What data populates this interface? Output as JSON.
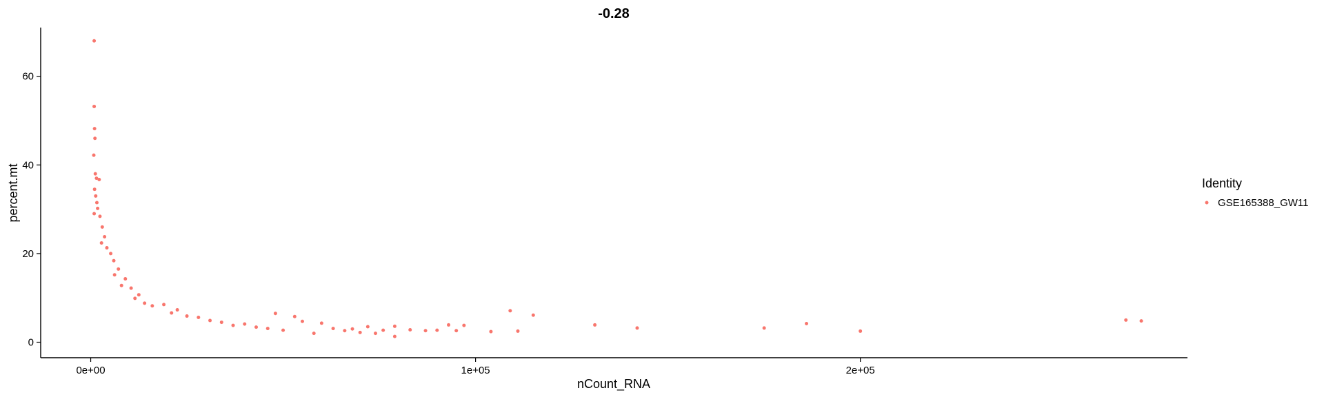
{
  "chart_data": {
    "type": "scatter",
    "title": "-0.28",
    "xlabel": "nCount_RNA",
    "ylabel": "percent.mt",
    "xlim": [
      -13000,
      285000
    ],
    "ylim": [
      -3.5,
      71
    ],
    "x_ticks": [
      {
        "value": 0,
        "label": "0e+00"
      },
      {
        "value": 100000,
        "label": "1e+05"
      },
      {
        "value": 200000,
        "label": "2e+05"
      }
    ],
    "y_ticks": [
      {
        "value": 0,
        "label": "0"
      },
      {
        "value": 20,
        "label": "20"
      },
      {
        "value": 40,
        "label": "40"
      },
      {
        "value": 60,
        "label": "60"
      }
    ],
    "grid": false,
    "legend": {
      "title": "Identity",
      "placement": "right",
      "entries": [
        {
          "label": "GSE165388_GW11",
          "color": "#F8766D"
        }
      ]
    },
    "series": [
      {
        "color": "#F8766D",
        "points": [
          [
            900,
            68
          ],
          [
            900,
            53.2
          ],
          [
            1000,
            48.2
          ],
          [
            1100,
            46
          ],
          [
            800,
            42.2
          ],
          [
            1200,
            38
          ],
          [
            1500,
            37
          ],
          [
            2200,
            36.7
          ],
          [
            1000,
            34.5
          ],
          [
            1300,
            33
          ],
          [
            1600,
            31.5
          ],
          [
            1800,
            30.2
          ],
          [
            900,
            29
          ],
          [
            2400,
            28.4
          ],
          [
            3000,
            26
          ],
          [
            3600,
            23.8
          ],
          [
            2800,
            22.4
          ],
          [
            4200,
            21.3
          ],
          [
            5200,
            20
          ],
          [
            6000,
            18.4
          ],
          [
            7200,
            16.5
          ],
          [
            6200,
            15.2
          ],
          [
            9000,
            14.3
          ],
          [
            8000,
            12.8
          ],
          [
            10500,
            12.2
          ],
          [
            12500,
            10.7
          ],
          [
            11500,
            9.9
          ],
          [
            14000,
            8.8
          ],
          [
            16000,
            8.2
          ],
          [
            19000,
            8.5
          ],
          [
            21000,
            6.6
          ],
          [
            22500,
            7.3
          ],
          [
            25000,
            5.9
          ],
          [
            28000,
            5.6
          ],
          [
            31000,
            4.9
          ],
          [
            34000,
            4.5
          ],
          [
            37000,
            3.8
          ],
          [
            40000,
            4.1
          ],
          [
            43000,
            3.4
          ],
          [
            46000,
            3.1
          ],
          [
            48000,
            6.5
          ],
          [
            50000,
            2.7
          ],
          [
            53000,
            5.8
          ],
          [
            55000,
            4.7
          ],
          [
            58000,
            2.0
          ],
          [
            60000,
            4.3
          ],
          [
            63000,
            3.1
          ],
          [
            66000,
            2.6
          ],
          [
            68000,
            3.0
          ],
          [
            70000,
            2.2
          ],
          [
            72000,
            3.5
          ],
          [
            74000,
            2.0
          ],
          [
            76000,
            2.7
          ],
          [
            79000,
            1.3
          ],
          [
            79000,
            3.6
          ],
          [
            83000,
            2.8
          ],
          [
            87000,
            2.6
          ],
          [
            90000,
            2.7
          ],
          [
            93000,
            3.9
          ],
          [
            95000,
            2.6
          ],
          [
            97000,
            3.8
          ],
          [
            104000,
            2.4
          ],
          [
            109000,
            7.1
          ],
          [
            111000,
            2.5
          ],
          [
            115000,
            6.1
          ],
          [
            131000,
            3.9
          ],
          [
            142000,
            3.2
          ],
          [
            175000,
            3.2
          ],
          [
            186000,
            4.2
          ],
          [
            200000,
            2.5
          ],
          [
            269000,
            5.0
          ],
          [
            273000,
            4.8
          ]
        ]
      }
    ]
  }
}
